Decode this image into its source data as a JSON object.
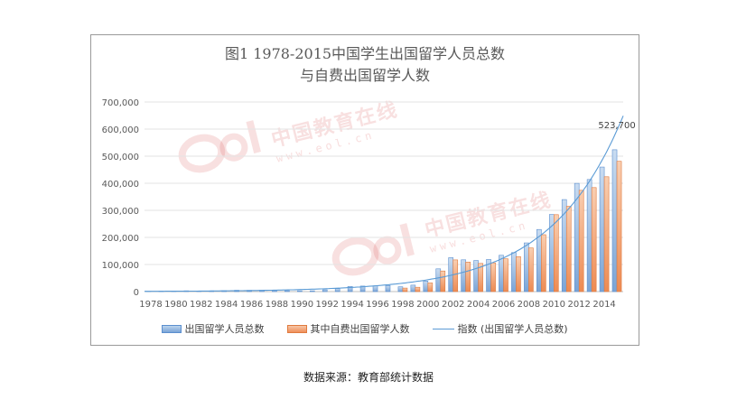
{
  "chart_data": {
    "type": "bar",
    "title_line1": "图1  1978-2015中国学生出国留学人员总数",
    "title_line2": "与自费出国留学人数",
    "categories": [
      "1978",
      "1979",
      "1980",
      "1981",
      "1982",
      "1983",
      "1984",
      "1985",
      "1986",
      "1987",
      "1988",
      "1989",
      "1990",
      "1991",
      "1992",
      "1993",
      "1994",
      "1995",
      "1996",
      "1997",
      "1998",
      "1999",
      "2000",
      "2001",
      "2002",
      "2003",
      "2004",
      "2005",
      "2006",
      "2007",
      "2008",
      "2009",
      "2010",
      "2011",
      "2012",
      "2013",
      "2014",
      "2015"
    ],
    "x_tick_labels": [
      "1978",
      "1980",
      "1982",
      "1984",
      "1986",
      "1988",
      "1990",
      "1992",
      "1994",
      "1996",
      "1998",
      "2000",
      "2002",
      "2004",
      "2006",
      "2008",
      "2010",
      "2012",
      "2014"
    ],
    "y_tick_labels": [
      "0",
      "100,000",
      "200,000",
      "300,000",
      "400,000",
      "500,000",
      "600,000",
      "700,000"
    ],
    "ylim": [
      0,
      700000
    ],
    "series": [
      {
        "name": "出国留学人员总数",
        "color": "#5b9bd5",
        "values": [
          860,
          1777,
          2124,
          2922,
          2326,
          2633,
          3073,
          4888,
          4676,
          4703,
          3786,
          3329,
          2950,
          2900,
          6540,
          10742,
          19071,
          20381,
          20905,
          22410,
          17622,
          23749,
          38989,
          83973,
          125179,
          117307,
          114682,
          118515,
          134000,
          144000,
          179800,
          229300,
          284700,
          339700,
          399600,
          413900,
          459800,
          523700
        ]
      },
      {
        "name": "其中自费出国留学人数",
        "color": "#ed7d31",
        "values": [
          0,
          0,
          0,
          0,
          0,
          0,
          0,
          0,
          0,
          0,
          0,
          0,
          0,
          0,
          0,
          0,
          0,
          0,
          0,
          0,
          13000,
          16000,
          32000,
          76000,
          117000,
          109000,
          104000,
          106000,
          121000,
          129000,
          161000,
          210000,
          284000,
          315000,
          374000,
          384000,
          424000,
          481000
        ]
      },
      {
        "name": "指数 (出国留学人员总数)",
        "color": "#5b9bd5",
        "type": "trendline-exponential"
      }
    ],
    "annotation": "523,700",
    "legend_position": "bottom",
    "grid": true
  },
  "watermark": {
    "brand": "中国教育在线",
    "url": "www.eol.cn",
    "logo": "eol"
  },
  "source": "数据来源：教育部统计数据"
}
